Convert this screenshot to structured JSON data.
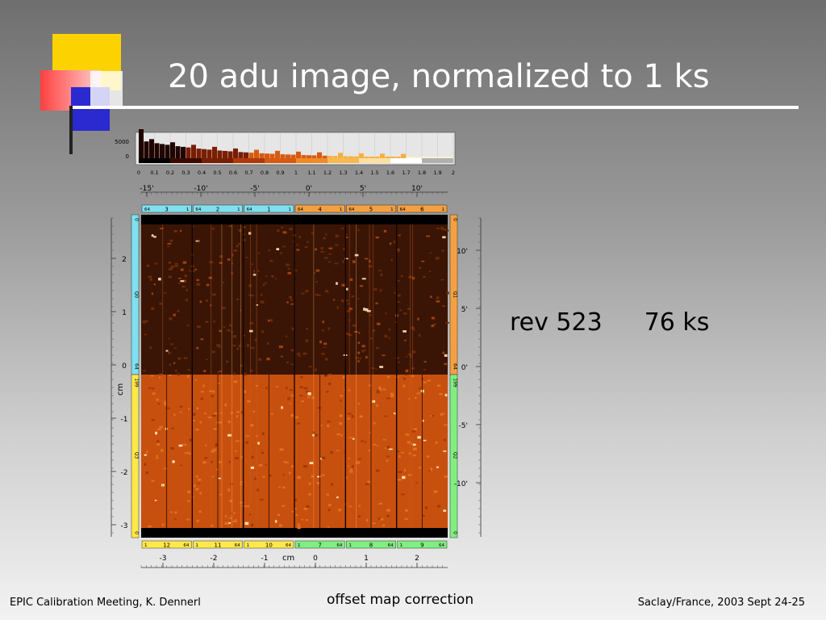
{
  "slide": {
    "title": "20 adu image, normalized to 1 ks",
    "rev_label": "rev 523",
    "exposure_label": "76 ks"
  },
  "footer": {
    "left": "EPIC Calibration Meeting, K. Dennerl",
    "center": "offset map correction",
    "right": "Saclay/France, 2003 Sept 24-25"
  },
  "figure": {
    "histogram": {
      "y_ticks": [
        "5000",
        "0"
      ],
      "x_ticks": [
        "0",
        "0.1",
        "0.2",
        "0.3",
        "0.4",
        "0.5",
        "0.6",
        "0.7",
        "0.8",
        "0.9",
        "1",
        "1.1",
        "1.2",
        "1.3",
        "1.4",
        "1.5",
        "1.6",
        "1.7",
        "1.8",
        "1.9",
        "2"
      ]
    },
    "top_arcmin_ticks": [
      "-15'",
      "-10'",
      "-5'",
      "0'",
      "5'",
      "10'"
    ],
    "top_ccds": [
      {
        "left": "64",
        "num": "3",
        "right": "1",
        "color": "#7fe0f0"
      },
      {
        "left": "64",
        "num": "2",
        "right": "1",
        "color": "#7fe0f0"
      },
      {
        "left": "64",
        "num": "1",
        "right": "1",
        "color": "#7fe0f0"
      },
      {
        "left": "64",
        "num": "4",
        "right": "1",
        "color": "#f5a040"
      },
      {
        "left": "64",
        "num": "5",
        "right": "1",
        "color": "#f5a040"
      },
      {
        "left": "64",
        "num": "6",
        "right": "1",
        "color": "#f5a040"
      }
    ],
    "bottom_ccds": [
      {
        "left": "1",
        "num": "12",
        "right": "64",
        "color": "#ffe84a"
      },
      {
        "left": "1",
        "num": "11",
        "right": "64",
        "color": "#ffe84a"
      },
      {
        "left": "1",
        "num": "10",
        "right": "64",
        "color": "#ffe84a"
      },
      {
        "left": "1",
        "num": "7",
        "right": "64",
        "color": "#80ee80"
      },
      {
        "left": "1",
        "num": "8",
        "right": "64",
        "color": "#80ee80"
      },
      {
        "left": "1",
        "num": "9",
        "right": "64",
        "color": "#80ee80"
      }
    ],
    "left_cm_ticks": [
      "2",
      "1",
      "0",
      "-1",
      "-2",
      "-3"
    ],
    "left_axis_label": "cm",
    "right_arcmin_ticks": [
      "10'",
      "5'",
      "0'",
      "-5'",
      "-10'"
    ],
    "bottom_cm_ticks": [
      "-3",
      "-2",
      "-1",
      "0",
      "1",
      "2"
    ],
    "bottom_axis_label": "cm",
    "left_quadrant_labels": [
      "0",
      "Q0",
      "64",
      "199",
      "Q3",
      "0"
    ],
    "right_quadrant_labels": [
      "0",
      "Q1",
      "64",
      "199",
      "Q2",
      "0"
    ]
  },
  "colors": {
    "cyan": "#7fe0f0",
    "orange": "#f5a040",
    "yellow": "#ffe84a",
    "green": "#80ee80",
    "upper_image": "#3a1505",
    "lower_image": "#c8500e"
  }
}
